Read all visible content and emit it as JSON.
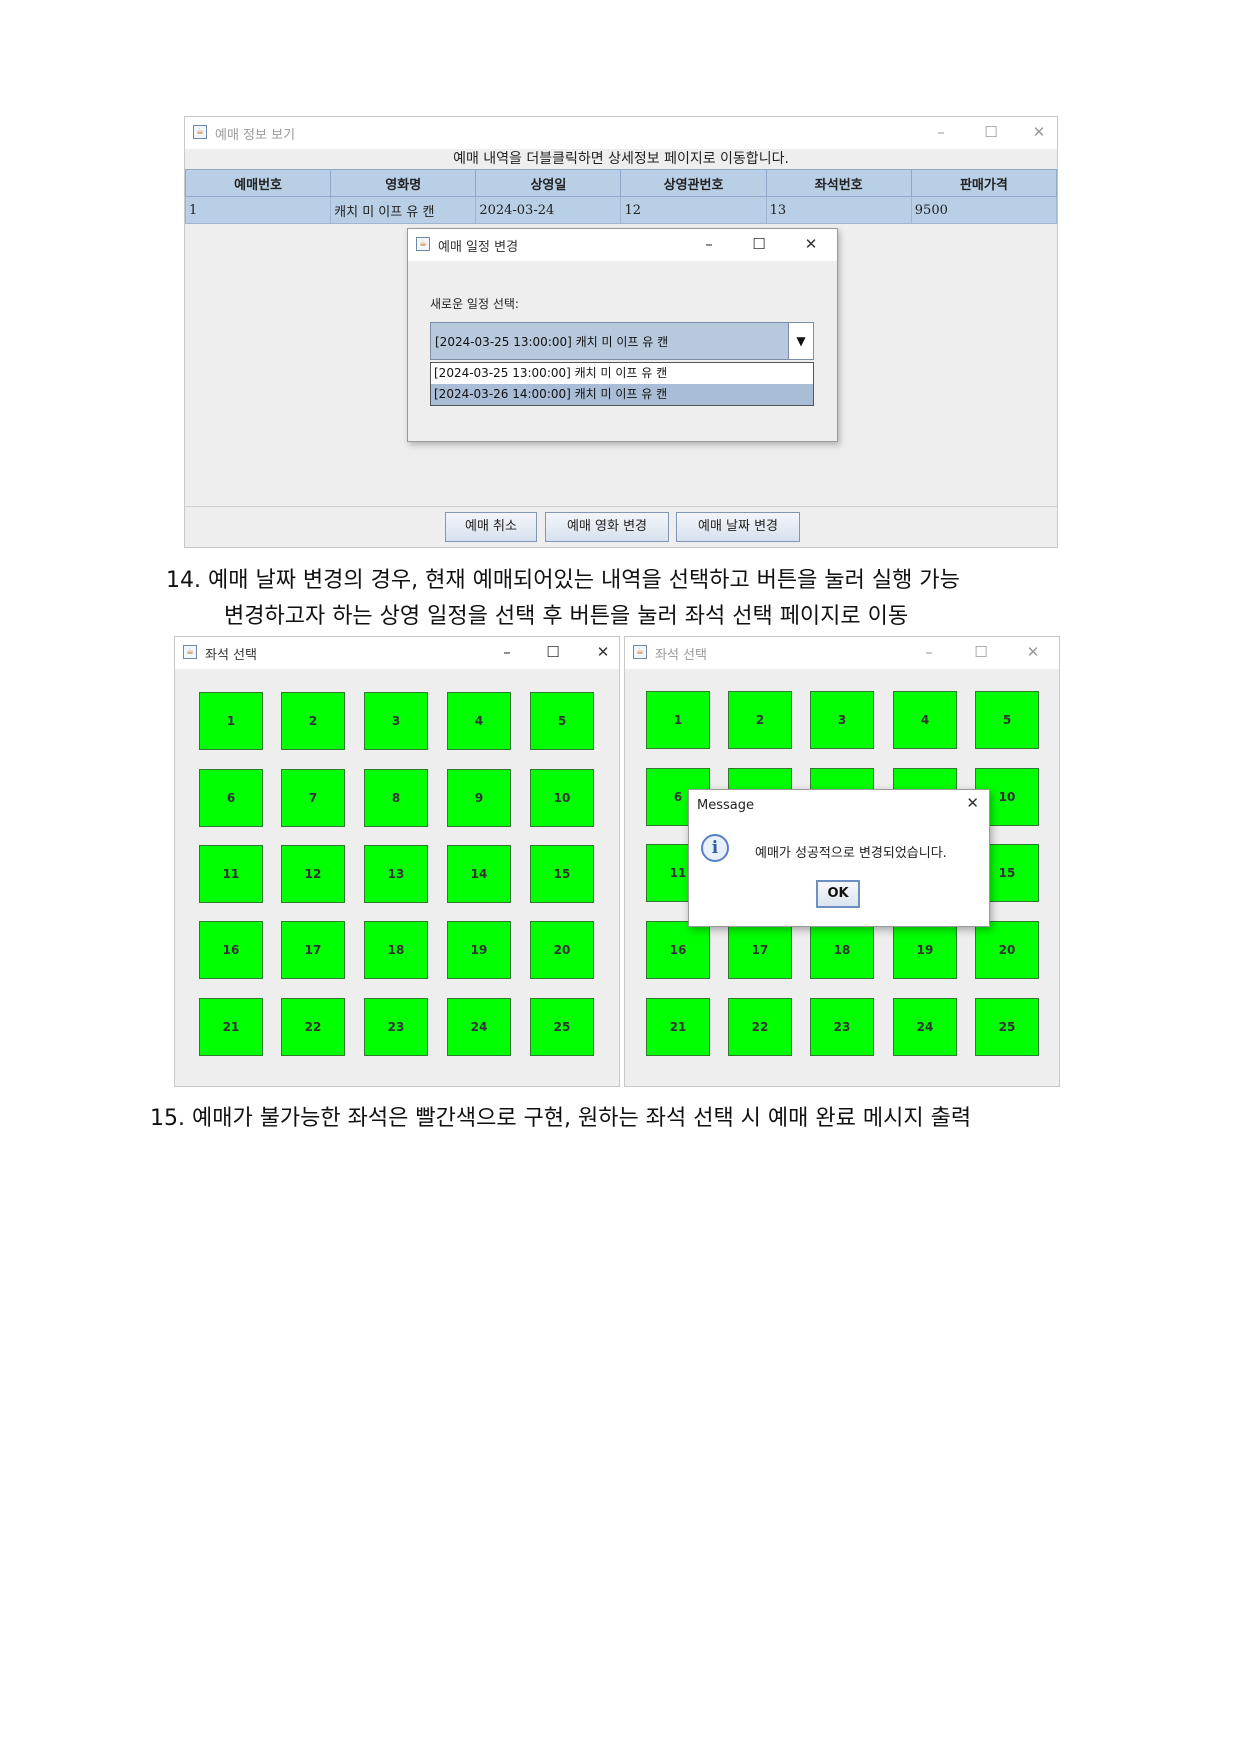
{
  "booking_window": {
    "title": "예매 정보 보기",
    "notice": "예매 내역을 더블클릭하면 상세정보 페이지로 이동합니다.",
    "columns": [
      "예매번호",
      "영화명",
      "상영일",
      "상영관번호",
      "좌석번호",
      "판매가격"
    ],
    "rows": [
      [
        "1",
        "캐치 미 이프 유 캔",
        "2024-03-24",
        "12",
        "13",
        "9500"
      ]
    ],
    "buttons": {
      "cancel": "예매 취소",
      "change_movie": "예매 영화 변경",
      "change_date": "예매 날짜 변경"
    }
  },
  "schedule_dialog": {
    "title": "예매 일정 변경",
    "label": "새로운 일정 선택:",
    "selected": "[2024-03-25 13:00:00] 캐치 미 이프 유 캔",
    "options": [
      "[2024-03-25 13:00:00] 캐치 미 이프 유 캔",
      "[2024-03-26 14:00:00] 캐치 미 이프 유 캔"
    ]
  },
  "caption_14": {
    "line1": "14. 예매 날짜 변경의 경우, 현재 예매되어있는 내역을 선택하고 버튼을 눌러 실행 가능",
    "line2": "변경하고자 하는 상영 일정을 선택 후 버튼을 눌러 좌석 선택 페이지로 이동"
  },
  "seat_window_left": {
    "title": "좌석 선택"
  },
  "seat_window_right": {
    "title": "좌석 선택"
  },
  "seats": [
    "1",
    "2",
    "3",
    "4",
    "5",
    "6",
    "7",
    "8",
    "9",
    "10",
    "11",
    "12",
    "13",
    "14",
    "15",
    "16",
    "17",
    "18",
    "19",
    "20",
    "21",
    "22",
    "23",
    "24",
    "25"
  ],
  "message_dialog": {
    "title": "Message",
    "text": "예매가 성공적으로 변경되었습니다.",
    "ok": "OK"
  },
  "caption_15": "15. 예매가 불가능한 좌석은 빨간색으로 구현, 원하는 좌석 선택 시 예매 완료 메시지 출력",
  "colors": {
    "seat_available": "#00ff00",
    "table_header": "#b8cfe5",
    "selection": "#a9bdd6"
  }
}
